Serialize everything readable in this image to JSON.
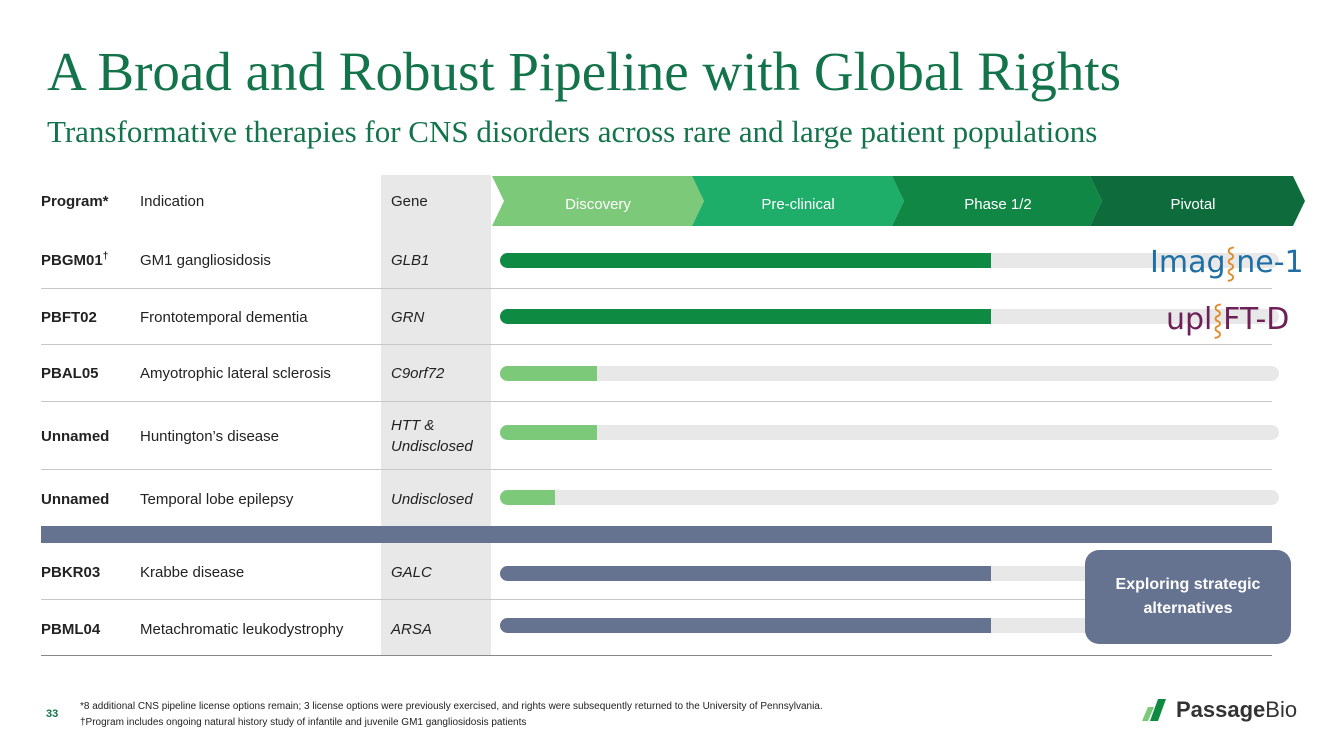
{
  "title": "A Broad and Robust Pipeline with Global Rights",
  "subtitle": "Transformative therapies for CNS disorders across rare and large patient populations",
  "header": {
    "program": "Program*",
    "indication": "Indication",
    "gene": "Gene",
    "phases": [
      "Discovery",
      "Pre-clinical",
      "Phase 1/2",
      "Pivotal"
    ]
  },
  "colors": {
    "title": "#13734a",
    "phase_discovery": "#7dc97a",
    "phase_preclinical": "#1fad6a",
    "phase_phase12": "#118746",
    "phase_pivotal": "#0e6b3c",
    "bar_dark_green": "#0f8a43",
    "bar_light_green": "#7dc97a",
    "bar_slate": "#667390",
    "track": "#e8e8e8"
  },
  "rows": [
    {
      "program": "PBGM01",
      "sup": "†",
      "indication": "GM1 gangliosidosis",
      "gene": "GLB1",
      "progress": 0.63,
      "color": "#0f8a43",
      "logo": "Imagine-1"
    },
    {
      "program": "PBFT02",
      "sup": "",
      "indication": "Frontotemporal dementia",
      "gene": "GRN",
      "progress": 0.63,
      "color": "#0f8a43",
      "logo": "upliFT-D"
    },
    {
      "program": "PBAL05",
      "sup": "",
      "indication": "Amyotrophic lateral sclerosis",
      "gene": "C9orf72",
      "progress": 0.125,
      "color": "#7dc97a"
    },
    {
      "program": "Unnamed",
      "sup": "",
      "indication": "Huntington’s disease",
      "gene": "HTT & Undisclosed",
      "progress": 0.125,
      "color": "#7dc97a"
    },
    {
      "program": "Unnamed",
      "sup": "",
      "indication": "Temporal lobe epilepsy",
      "gene": "Undisclosed",
      "progress": 0.07,
      "color": "#7dc97a"
    },
    {
      "program": "PBKR03",
      "sup": "",
      "indication": "Krabbe disease",
      "gene": "GALC",
      "progress": 0.63,
      "color": "#667390"
    },
    {
      "program": "PBML04",
      "sup": "",
      "indication": "Metachromatic leukodystrophy",
      "gene": "ARSA",
      "progress": 0.63,
      "color": "#667390"
    }
  ],
  "logos": {
    "imagine": {
      "pre": "Imag",
      "mid": "⸾",
      "post": "ne-1"
    },
    "uplift": {
      "pre": "upl",
      "mid": "⸾",
      "post": "FT-D"
    }
  },
  "callout": "Exploring strategic alternatives",
  "page_number": "33",
  "footnotes": [
    "*8 additional CNS pipeline license options remain; 3 license options were previously exercised, and rights were subsequently returned to the University of Pennsylvania.",
    "†Program includes ongoing natural history study of infantile and juvenile GM1 gangliosidosis patients"
  ],
  "brand": {
    "bold": "Passage",
    "light": "Bio"
  }
}
